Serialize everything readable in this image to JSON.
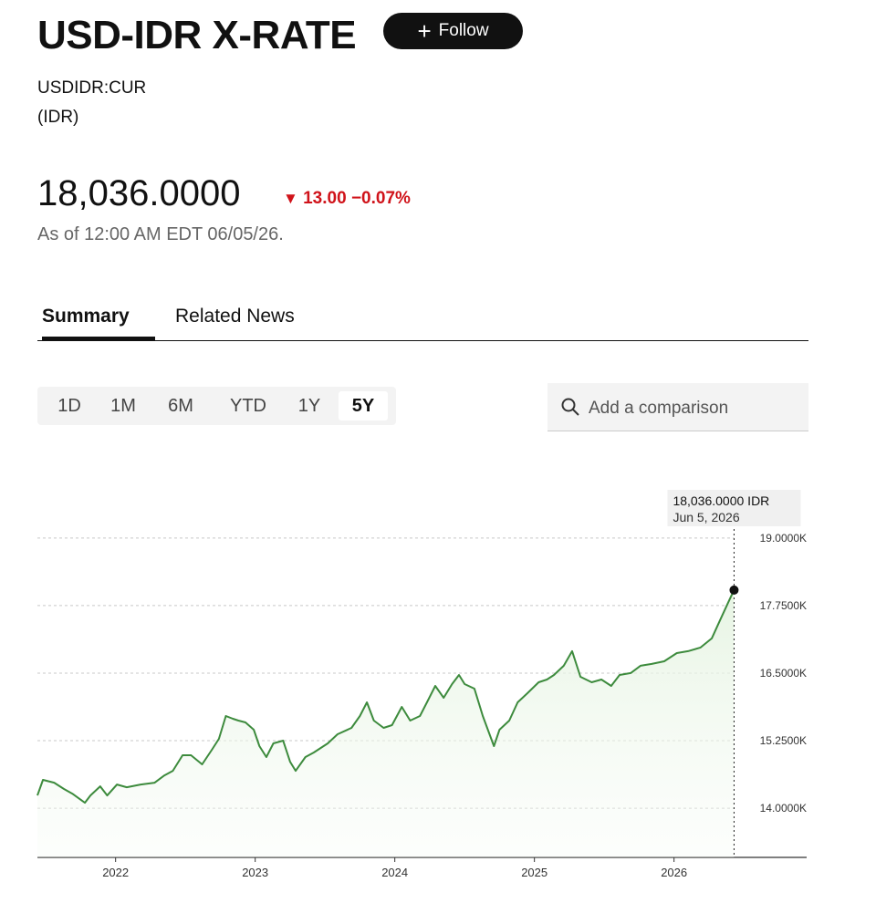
{
  "header": {
    "title": "USD-IDR X-RATE",
    "follow": "Follow",
    "ticker": "USDIDR:CUR",
    "currency": "(IDR)",
    "price": "18,036.0000",
    "change": "13.00",
    "change_pct": "−0.07%",
    "as_of": "As of 12:00 AM EDT 06/05/26."
  },
  "tabs": [
    "Summary",
    "Related News"
  ],
  "ranges": [
    "1D",
    "1M",
    "6M",
    "YTD",
    "1Y",
    "5Y"
  ],
  "search_placeholder": "Add a comparison",
  "chart_data": {
    "type": "line",
    "color": "#3d8b3d",
    "grid": true,
    "x": [
      2021.44,
      2021.48,
      2021.56,
      2021.63,
      2021.69,
      2021.78,
      2021.82,
      2021.89,
      2021.94,
      2022.01,
      2022.08,
      2022.18,
      2022.28,
      2022.35,
      2022.41,
      2022.48,
      2022.54,
      2022.62,
      2022.69,
      2022.74,
      2022.79,
      2022.84,
      2022.88,
      2022.93,
      2022.99,
      2023.03,
      2023.08,
      2023.13,
      2023.2,
      2023.25,
      2023.29,
      2023.36,
      2023.42,
      2023.52,
      2023.59,
      2023.69,
      2023.75,
      2023.8,
      2023.85,
      2023.92,
      2023.98,
      2024.05,
      2024.11,
      2024.18,
      2024.23,
      2024.29,
      2024.35,
      2024.41,
      2024.46,
      2024.5,
      2024.57,
      2024.63,
      2024.71,
      2024.75,
      2024.82,
      2024.88,
      2024.95,
      2025.03,
      2025.09,
      2025.14,
      2025.21,
      2025.27,
      2025.33,
      2025.41,
      2025.48,
      2025.55,
      2025.61,
      2025.69,
      2025.76,
      2025.84,
      2025.93,
      2026.02,
      2026.1,
      2026.19,
      2026.27,
      2026.33,
      2026.39,
      2026.43
    ],
    "values": [
      14236,
      14524,
      14473,
      14355,
      14270,
      14101,
      14236,
      14405,
      14236,
      14439,
      14388,
      14439,
      14473,
      14608,
      14692,
      14980,
      14980,
      14811,
      15081,
      15284,
      15706,
      15655,
      15621,
      15588,
      15453,
      15149,
      14946,
      15199,
      15250,
      14861,
      14692,
      14946,
      15030,
      15199,
      15368,
      15486,
      15706,
      15959,
      15621,
      15486,
      15537,
      15875,
      15621,
      15706,
      15959,
      16263,
      16044,
      16297,
      16466,
      16297,
      16213,
      15706,
      15149,
      15453,
      15621,
      15959,
      16128,
      16331,
      16381,
      16466,
      16635,
      16905,
      16432,
      16331,
      16381,
      16263,
      16466,
      16500,
      16635,
      16669,
      16719,
      16871,
      16905,
      16973,
      17142,
      17479,
      17817,
      18036
    ],
    "xlim": [
      2021.44,
      2026.95
    ],
    "xticks": [
      2022,
      2023,
      2024,
      2025,
      2026
    ],
    "ylim": [
      13090,
      19250
    ],
    "yticks": [
      {
        "value": 14000,
        "label": "14.0000K"
      },
      {
        "value": 15250,
        "label": "15.2500K"
      },
      {
        "value": 16500,
        "label": "16.5000K"
      },
      {
        "value": 17750,
        "label": "17.7500K"
      },
      {
        "value": 19000,
        "label": "19.0000K"
      }
    ],
    "tooltip": {
      "value_label": "18,036.0000 IDR",
      "date": "Jun 5, 2026"
    }
  }
}
